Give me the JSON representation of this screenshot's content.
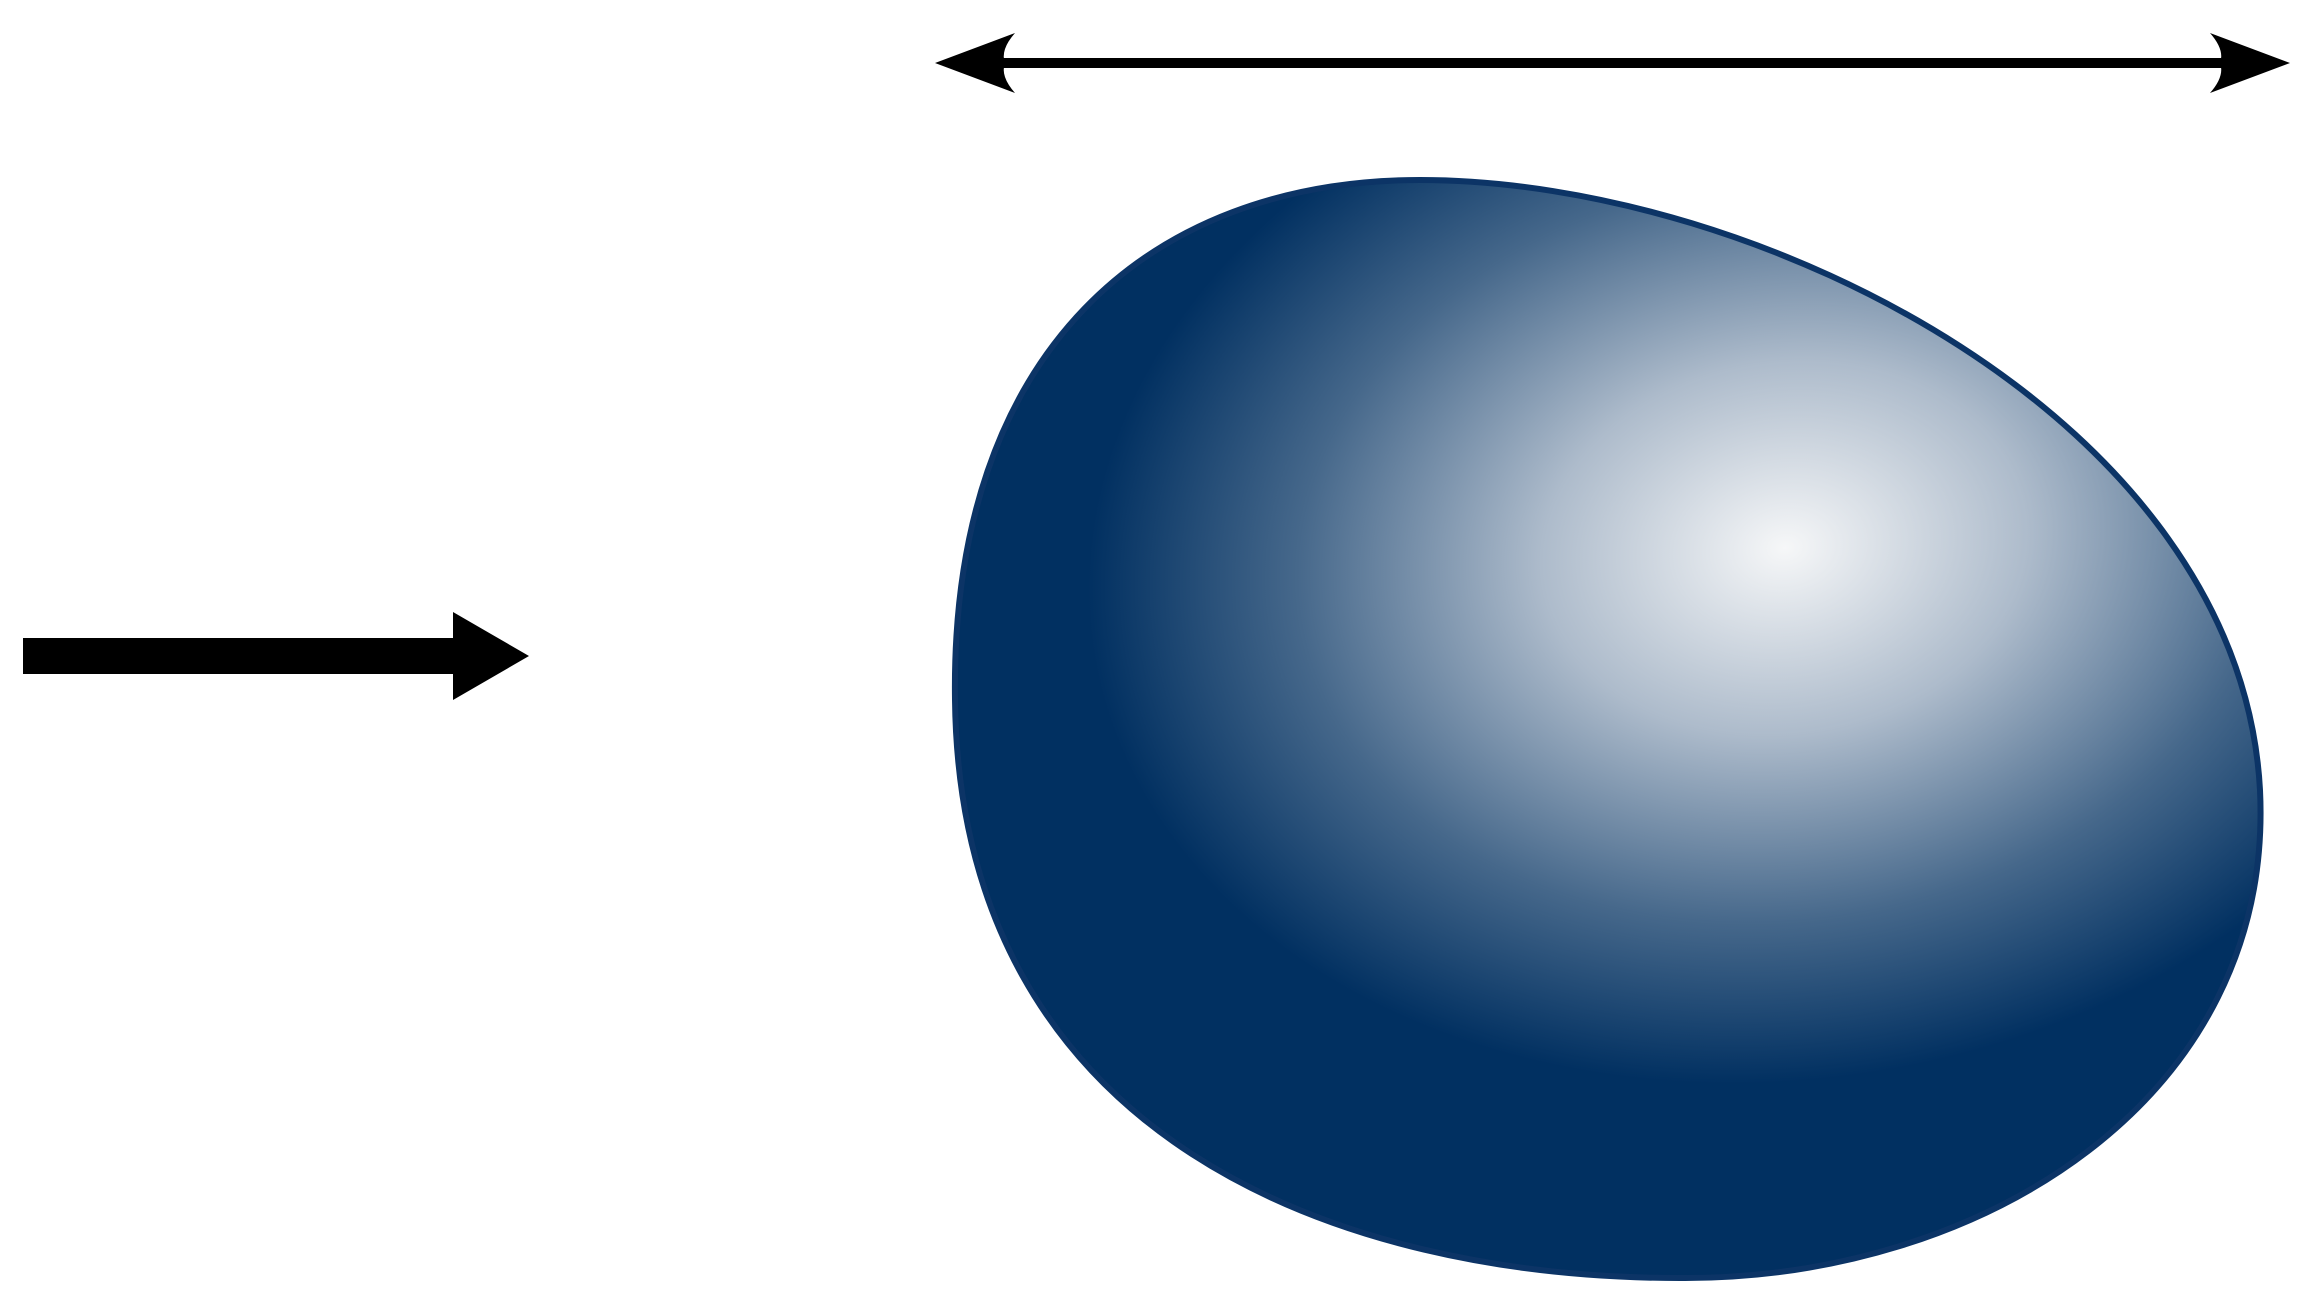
{
  "diagram": {
    "elements": [
      {
        "name": "incoming-arrow",
        "kind": "arrow",
        "direction": "right"
      },
      {
        "name": "width-dimension-arrow",
        "kind": "double-headed-arrow",
        "direction": "horizontal"
      },
      {
        "name": "blob-shape",
        "kind": "egg-shaped body with radial highlight"
      }
    ]
  },
  "colors": {
    "background": "#ffffff",
    "arrow": "#000000",
    "blob_dark": "#013061",
    "blob_highlight": "#f6f7f8",
    "blob_outline": "#0c3466"
  }
}
